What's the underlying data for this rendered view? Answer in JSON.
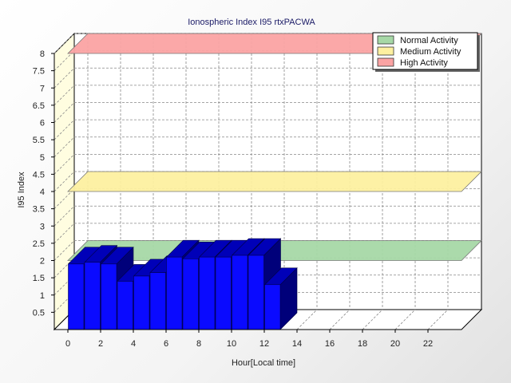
{
  "chart_data": {
    "type": "bar",
    "title": "Ionospheric Index I95 rtxPACWA",
    "xlabel": "Hour[Local time]",
    "ylabel": "I95 Index",
    "x_ticks": [
      "0",
      "2",
      "4",
      "6",
      "8",
      "10",
      "12",
      "14",
      "16",
      "18",
      "20",
      "22"
    ],
    "y_ticks": [
      "0.5",
      "1",
      "1.5",
      "2",
      "2.5",
      "3",
      "3.5",
      "4",
      "4.5",
      "5",
      "5.5",
      "6",
      "6.5",
      "7",
      "7.5",
      "8"
    ],
    "xlim": [
      0,
      24
    ],
    "ylim": [
      0,
      8
    ],
    "grid": true,
    "legend_position": "top-right",
    "series": [
      {
        "color": "#0a0aff",
        "x": [
          0,
          1,
          2,
          3,
          4,
          5,
          6,
          7,
          8,
          9,
          10,
          11,
          12
        ],
        "values": [
          1.9,
          1.95,
          1.9,
          1.4,
          1.55,
          1.65,
          2.1,
          2.05,
          2.1,
          2.1,
          2.15,
          2.15,
          1.3
        ]
      }
    ],
    "activity_bands": [
      {
        "name": "Normal Activity",
        "value": 2.0,
        "color": "#a6d8a6"
      },
      {
        "name": "Medium Activity",
        "value": 4.0,
        "color": "#fdf0a0"
      },
      {
        "name": "High Activity",
        "value": 8.0,
        "color": "#fba3a3"
      }
    ]
  }
}
